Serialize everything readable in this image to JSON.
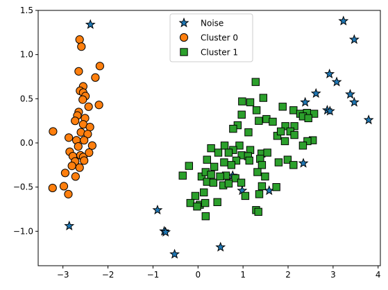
{
  "chart_data": {
    "type": "scatter",
    "title": "",
    "xlabel": "",
    "ylabel": "",
    "xlim": [
      -3.55,
      4.05
    ],
    "ylim": [
      -1.39,
      1.5
    ],
    "xticks": [
      -3,
      -2,
      -1,
      0,
      1,
      2,
      3,
      4
    ],
    "yticks": [
      -1.0,
      -0.5,
      0.0,
      0.5,
      1.0,
      1.5
    ],
    "xtick_labels": [
      "−3",
      "−2",
      "−1",
      "0",
      "1",
      "2",
      "3",
      "4"
    ],
    "ytick_labels": [
      "−1.0",
      "−0.5",
      "0.0",
      "0.5",
      "1.0",
      "1.5"
    ],
    "grid": false,
    "legend_position": "top-center",
    "series": [
      {
        "name": "Noise",
        "marker": "star",
        "color": "#1f77b4",
        "points": [
          [
            -2.39,
            1.34
          ],
          [
            -2.86,
            -0.94
          ],
          [
            -0.9,
            -0.76
          ],
          [
            -0.75,
            -1.0
          ],
          [
            -0.72,
            -1.01
          ],
          [
            -0.52,
            -1.26
          ],
          [
            0.5,
            -1.18
          ],
          [
            0.77,
            -0.37
          ],
          [
            0.98,
            -0.54
          ],
          [
            1.58,
            -0.54
          ],
          [
            2.34,
            -0.23
          ],
          [
            2.38,
            0.46
          ],
          [
            2.62,
            0.56
          ],
          [
            2.87,
            0.37
          ],
          [
            2.93,
            0.36
          ],
          [
            2.92,
            0.78
          ],
          [
            3.08,
            0.69
          ],
          [
            3.23,
            1.38
          ],
          [
            3.38,
            0.55
          ],
          [
            3.47,
            1.17
          ],
          [
            3.47,
            0.46
          ],
          [
            3.79,
            0.26
          ]
        ]
      },
      {
        "name": "Cluster 0",
        "marker": "circle",
        "color": "#ff7f0e",
        "points": [
          [
            -2.63,
            1.17
          ],
          [
            -2.59,
            1.09
          ],
          [
            -2.65,
            0.81
          ],
          [
            -2.28,
            0.74
          ],
          [
            -2.18,
            0.87
          ],
          [
            -2.55,
            0.64
          ],
          [
            -2.62,
            0.59
          ],
          [
            -2.55,
            0.57
          ],
          [
            -2.5,
            0.53
          ],
          [
            -2.43,
            0.41
          ],
          [
            -2.56,
            0.49
          ],
          [
            -2.2,
            0.43
          ],
          [
            -2.65,
            0.35
          ],
          [
            -2.68,
            0.31
          ],
          [
            -2.51,
            0.28
          ],
          [
            -2.73,
            0.25
          ],
          [
            -2.55,
            0.21
          ],
          [
            -2.4,
            0.18
          ],
          [
            -2.6,
            0.12
          ],
          [
            -2.45,
            0.1
          ],
          [
            -2.87,
            0.06
          ],
          [
            -2.7,
            0.03
          ],
          [
            -2.53,
            0.03
          ],
          [
            -2.66,
            -0.04
          ],
          [
            -2.35,
            -0.03
          ],
          [
            -2.85,
            -0.1
          ],
          [
            -2.61,
            -0.14
          ],
          [
            -2.78,
            -0.15
          ],
          [
            -2.55,
            -0.16
          ],
          [
            -2.42,
            -0.11
          ],
          [
            -2.73,
            -0.21
          ],
          [
            -2.53,
            -0.2
          ],
          [
            -2.8,
            -0.26
          ],
          [
            -2.63,
            -0.28
          ],
          [
            -2.95,
            -0.34
          ],
          [
            -2.72,
            -0.38
          ],
          [
            -3.22,
            0.13
          ],
          [
            -3.23,
            -0.51
          ],
          [
            -2.98,
            -0.49
          ],
          [
            -2.88,
            -0.58
          ]
        ]
      },
      {
        "name": "Cluster 1",
        "marker": "square",
        "color": "#2ca02c",
        "points": [
          [
            1.28,
            0.69
          ],
          [
            1.45,
            0.51
          ],
          [
            0.98,
            0.47
          ],
          [
            1.16,
            0.46
          ],
          [
            1.3,
            0.37
          ],
          [
            0.97,
            0.32
          ],
          [
            1.35,
            0.25
          ],
          [
            1.52,
            0.27
          ],
          [
            1.66,
            0.24
          ],
          [
            0.88,
            0.2
          ],
          [
            0.78,
            0.16
          ],
          [
            1.12,
            0.12
          ],
          [
            1.88,
            0.41
          ],
          [
            2.12,
            0.37
          ],
          [
            2.27,
            0.33
          ],
          [
            2.42,
            0.34
          ],
          [
            2.58,
            0.33
          ],
          [
            2.14,
            0.19
          ],
          [
            1.94,
            0.19
          ],
          [
            2.05,
            0.13
          ],
          [
            2.33,
            0.3
          ],
          [
            2.45,
            0.28
          ],
          [
            1.76,
            0.08
          ],
          [
            1.93,
            0.02
          ],
          [
            1.84,
            0.13
          ],
          [
            2.55,
            0.03
          ],
          [
            2.43,
            0.02
          ],
          [
            2.14,
            0.09
          ],
          [
            2.33,
            -0.03
          ],
          [
            0.92,
            -0.03
          ],
          [
            0.59,
            -0.03
          ],
          [
            0.78,
            -0.08
          ],
          [
            0.29,
            -0.06
          ],
          [
            1.16,
            -0.08
          ],
          [
            0.45,
            -0.11
          ],
          [
            0.68,
            -0.11
          ],
          [
            0.97,
            -0.14
          ],
          [
            1.11,
            -0.15
          ],
          [
            1.41,
            -0.12
          ],
          [
            1.79,
            -0.22
          ],
          [
            1.99,
            -0.19
          ],
          [
            2.12,
            -0.25
          ],
          [
            0.2,
            -0.19
          ],
          [
            0.36,
            -0.27
          ],
          [
            0.58,
            -0.22
          ],
          [
            0.85,
            -0.2
          ],
          [
            1.14,
            -0.2
          ],
          [
            1.38,
            -0.18
          ],
          [
            1.42,
            -0.25
          ],
          [
            1.49,
            -0.38
          ],
          [
            1.32,
            -0.33
          ],
          [
            0.08,
            -0.38
          ],
          [
            0.2,
            -0.44
          ],
          [
            0.34,
            -0.45
          ],
          [
            0.62,
            -0.37
          ],
          [
            0.83,
            -0.4
          ],
          [
            0.96,
            -0.45
          ],
          [
            -0.06,
            -0.6
          ],
          [
            0.13,
            -0.56
          ],
          [
            -0.34,
            -0.37
          ],
          [
            -0.2,
            -0.26
          ],
          [
            0.17,
            -0.33
          ],
          [
            0.29,
            -0.36
          ],
          [
            0.04,
            -0.7
          ],
          [
            -0.17,
            -0.68
          ],
          [
            0.16,
            -0.68
          ],
          [
            0.43,
            -0.67
          ],
          [
            0.56,
            -0.48
          ],
          [
            0.68,
            -0.46
          ],
          [
            1.05,
            -0.6
          ],
          [
            1.36,
            -0.58
          ],
          [
            1.42,
            -0.49
          ],
          [
            1.74,
            -0.5
          ],
          [
            1.29,
            -0.76
          ],
          [
            1.34,
            -0.78
          ],
          [
            0.17,
            -0.83
          ],
          [
            -0.02,
            -0.72
          ],
          [
            0.49,
            -0.38
          ],
          [
            0.74,
            -0.25
          ],
          [
            1.54,
            -0.11
          ]
        ]
      }
    ]
  }
}
